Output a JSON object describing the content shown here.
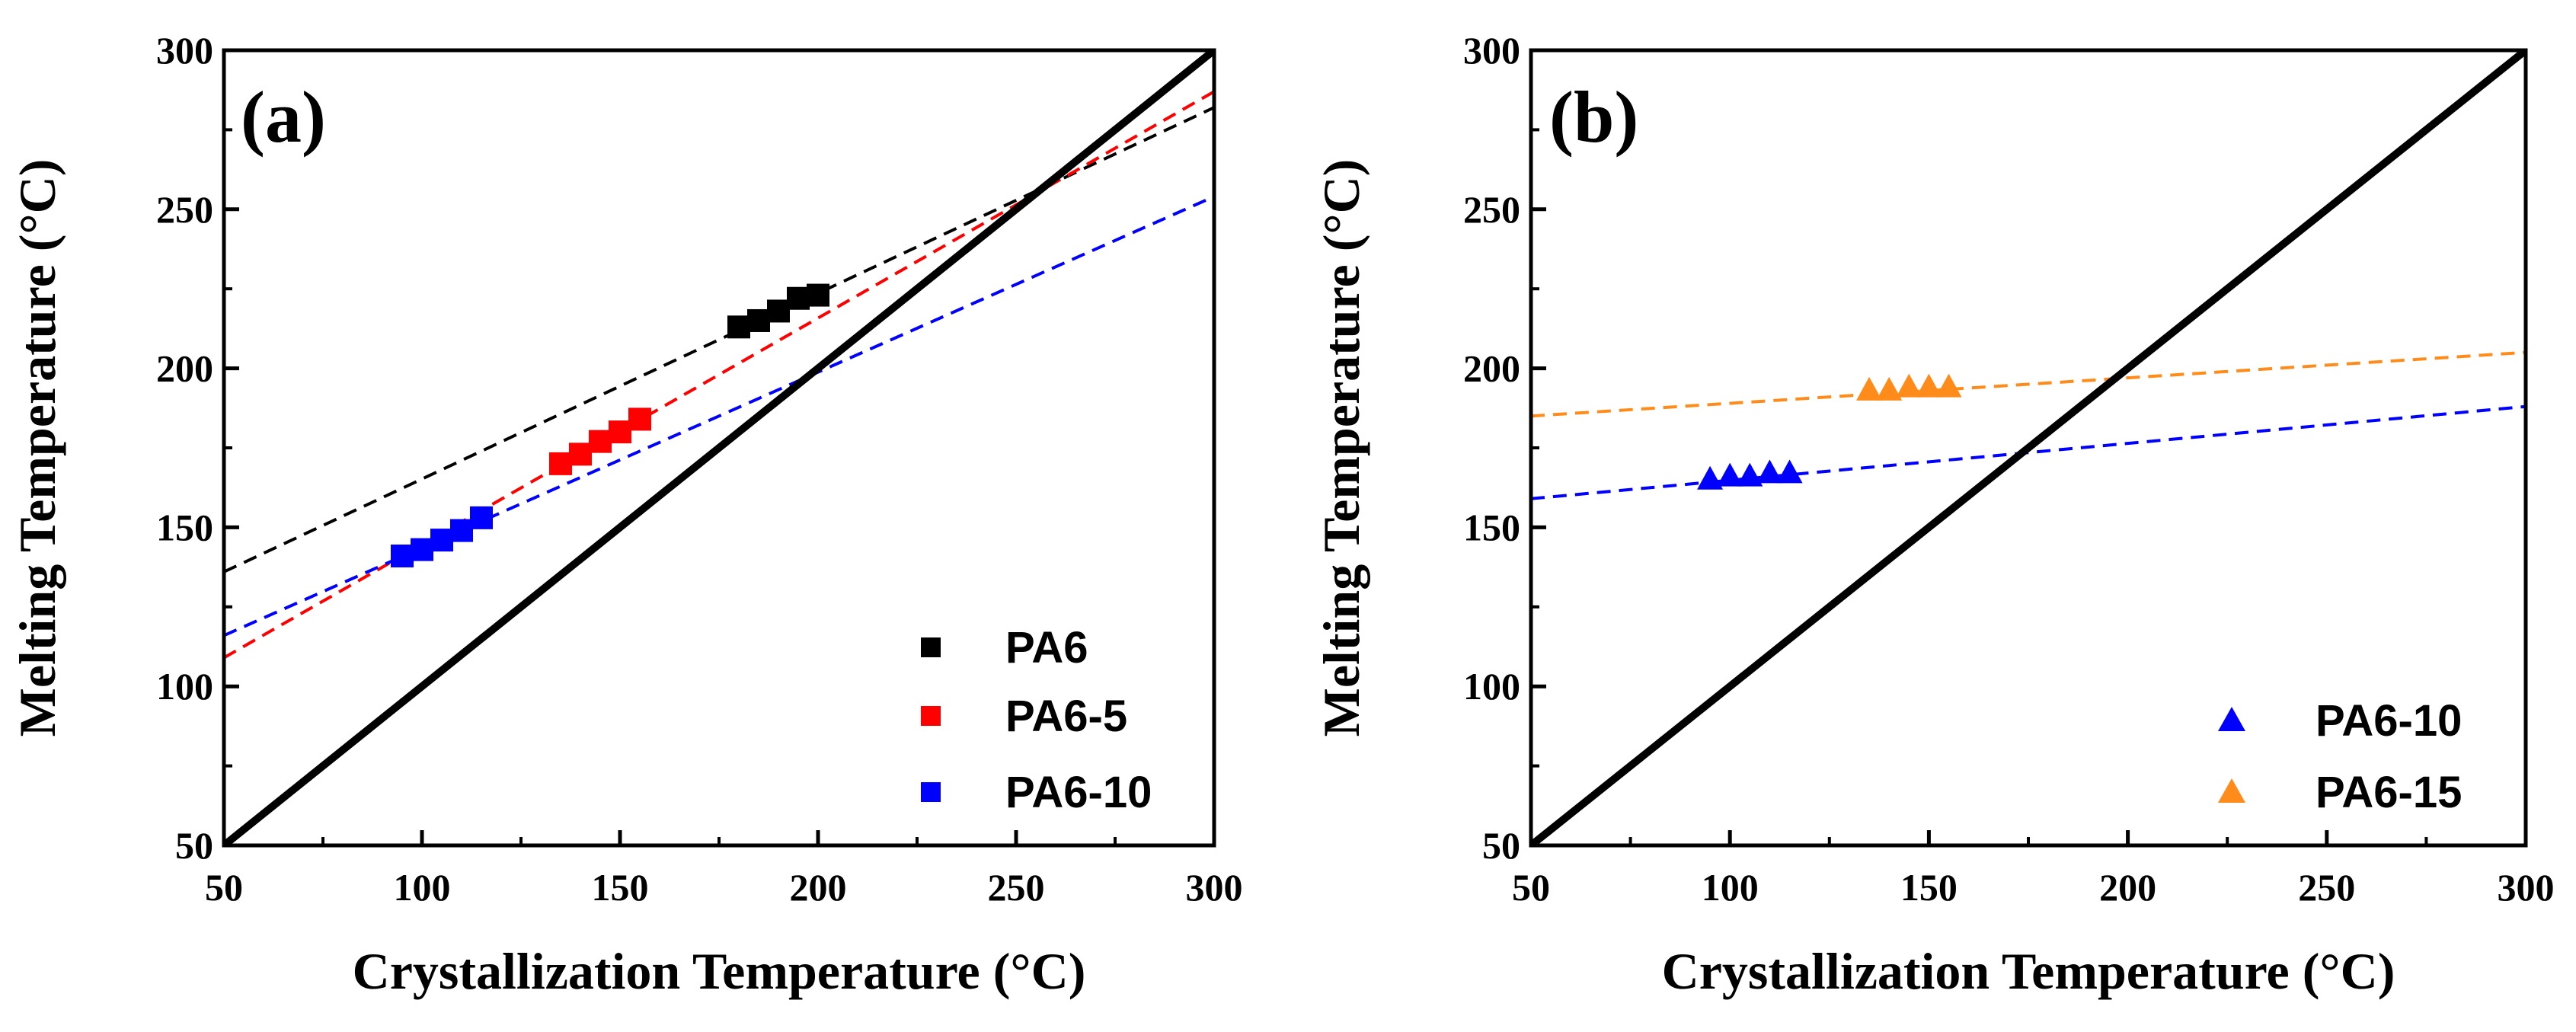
{
  "chart_data": [
    {
      "type": "scatter",
      "panel_label": "(a)",
      "xlabel": "Crystallization Temperature (°C)",
      "ylabel": "Melting Temperature (°C)",
      "xlim": [
        50,
        300
      ],
      "ylim": [
        50,
        300
      ],
      "xticks": [
        50,
        100,
        150,
        200,
        250,
        300
      ],
      "yticks": [
        50,
        100,
        150,
        200,
        250,
        300
      ],
      "xtick_labels": [
        "50",
        "100",
        "150",
        "200",
        "250",
        "300"
      ],
      "ytick_labels": [
        "50",
        "100",
        "150",
        "200",
        "250",
        "300"
      ],
      "reference_line": {
        "style": "solid",
        "color": "#000000",
        "x": [
          50,
          300
        ],
        "y": [
          50,
          300
        ]
      },
      "legend_position": "bottom-right",
      "series": [
        {
          "name": "PA6",
          "marker": "square",
          "color": "#000000",
          "x": [
            180,
            185,
            190,
            195,
            200
          ],
          "y": [
            213,
            215,
            218,
            222,
            223
          ],
          "fit": {
            "x": [
              50,
              300
            ],
            "y": [
              136,
              282
            ]
          }
        },
        {
          "name": "PA6-5",
          "marker": "square",
          "color": "#ff0000",
          "x": [
            135,
            140,
            145,
            150,
            155
          ],
          "y": [
            170,
            173,
            177,
            180,
            184
          ],
          "fit": {
            "x": [
              50,
              300
            ],
            "y": [
              109,
              287
            ]
          }
        },
        {
          "name": "PA6-10",
          "marker": "square",
          "color": "#0000ff",
          "x": [
            95,
            100,
            105,
            110,
            115
          ],
          "y": [
            141,
            143,
            146,
            149,
            153
          ],
          "fit": {
            "x": [
              50,
              300
            ],
            "y": [
              116,
              254
            ]
          }
        }
      ]
    },
    {
      "type": "scatter",
      "panel_label": "(b)",
      "xlabel": "Crystallization Temperature (°C)",
      "ylabel": "Melting Temperature (°C)",
      "xlim": [
        50,
        300
      ],
      "ylim": [
        50,
        300
      ],
      "xticks": [
        50,
        100,
        150,
        200,
        250,
        300
      ],
      "yticks": [
        50,
        100,
        150,
        200,
        250,
        300
      ],
      "xtick_labels": [
        "50",
        "100",
        "150",
        "200",
        "250",
        "300"
      ],
      "ytick_labels": [
        "50",
        "100",
        "150",
        "200",
        "250",
        "300"
      ],
      "reference_line": {
        "style": "solid",
        "color": "#000000",
        "x": [
          50,
          300
        ],
        "y": [
          50,
          300
        ]
      },
      "legend_position": "bottom-right",
      "series": [
        {
          "name": "PA6-10",
          "marker": "triangle",
          "color": "#0000ff",
          "x": [
            95,
            100,
            105,
            110,
            115
          ],
          "y": [
            165,
            166,
            166,
            167,
            167
          ],
          "fit": {
            "x": [
              50,
              300
            ],
            "y": [
              159,
              188
            ]
          }
        },
        {
          "name": "PA6-15",
          "marker": "triangle",
          "color": "#ff8c1a",
          "x": [
            135,
            140,
            145,
            150,
            155
          ],
          "y": [
            193,
            193,
            194,
            194,
            194
          ],
          "fit": {
            "x": [
              50,
              300
            ],
            "y": [
              185,
              205
            ]
          }
        }
      ]
    }
  ]
}
